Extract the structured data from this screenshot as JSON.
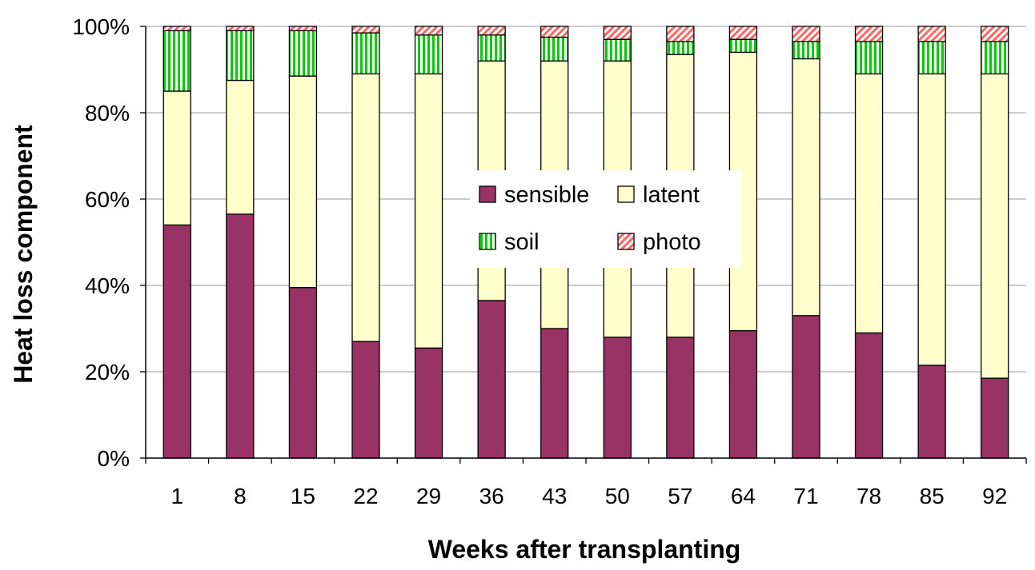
{
  "chart_data": {
    "type": "bar",
    "stacked": true,
    "percent": true,
    "title": "",
    "xlabel": "Weeks after transplanting",
    "ylabel": "Heat loss component",
    "categories": [
      "1",
      "8",
      "15",
      "22",
      "29",
      "36",
      "43",
      "50",
      "57",
      "64",
      "71",
      "78",
      "85",
      "92"
    ],
    "series": [
      {
        "name": "sensible",
        "color": "#993366",
        "pattern": "solid",
        "values": [
          54,
          56.5,
          39.5,
          27,
          25.5,
          36.5,
          30,
          28,
          28,
          29.5,
          33,
          29,
          21.5,
          18.5
        ]
      },
      {
        "name": "latent",
        "color": "#FFFFCC",
        "pattern": "solid",
        "values": [
          31,
          31,
          49,
          62,
          63.5,
          55.5,
          62,
          64,
          65.5,
          64.5,
          59.5,
          60,
          67.5,
          70.5
        ]
      },
      {
        "name": "soil",
        "color": "#00CC00",
        "pattern": "vertical-stripes",
        "values": [
          14,
          11.5,
          10.5,
          9.5,
          9,
          6,
          5.5,
          5,
          3,
          3,
          4,
          7.5,
          7.5,
          7.5
        ]
      },
      {
        "name": "photo",
        "color": "#FF6666",
        "pattern": "diagonal-hatch",
        "values": [
          1,
          1,
          1,
          1.5,
          2,
          2,
          2.5,
          3,
          3.5,
          3,
          3.5,
          3.5,
          3.5,
          3.5
        ]
      }
    ],
    "ylim": [
      0,
      100
    ],
    "y_ticks": [
      "0%",
      "20%",
      "40%",
      "60%",
      "80%",
      "100%"
    ],
    "grid": true,
    "legend": {
      "placement": "center",
      "entries": [
        "sensible",
        "latent",
        "soil",
        "photo"
      ]
    }
  }
}
